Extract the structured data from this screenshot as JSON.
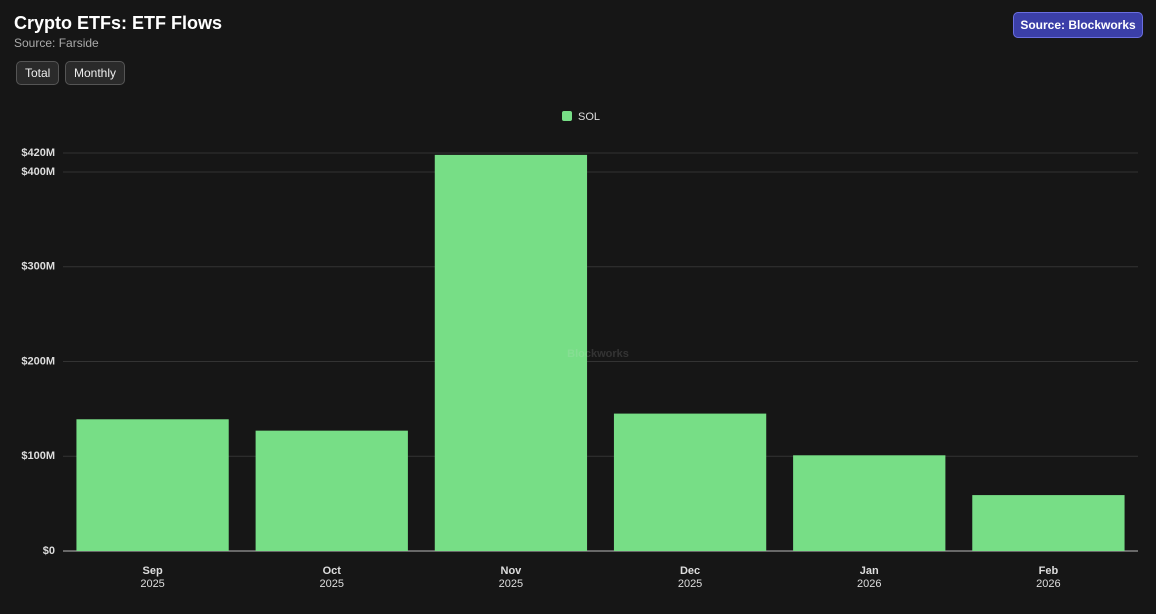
{
  "header": {
    "title": "Crypto ETFs: ETF Flows",
    "subtitle": "Source: Farside",
    "source_button": "Source: Blockworks"
  },
  "controls": [
    "Total",
    "Monthly"
  ],
  "chart_data": {
    "type": "bar",
    "watermark": "Blockworks",
    "categories": [
      {
        "month": "Sep",
        "year": "2025"
      },
      {
        "month": "Oct",
        "year": "2025"
      },
      {
        "month": "Nov",
        "year": "2025"
      },
      {
        "month": "Dec",
        "year": "2025"
      },
      {
        "month": "Jan",
        "year": "2026"
      },
      {
        "month": "Feb",
        "year": "2026"
      }
    ],
    "series": [
      {
        "name": "SOL",
        "color": "#77de86",
        "values": [
          139000000,
          127000000,
          418000000,
          145000000,
          101000000,
          59000000
        ]
      }
    ],
    "ylim": [
      0,
      420000000
    ],
    "yticks": [
      {
        "value": 0,
        "label": "$0"
      },
      {
        "value": 100000000,
        "label": "$100M"
      },
      {
        "value": 200000000,
        "label": "$200M"
      },
      {
        "value": 300000000,
        "label": "$300M"
      },
      {
        "value": 400000000,
        "label": "$400M"
      },
      {
        "value": 420000000,
        "label": "$420M"
      }
    ],
    "grid": true,
    "legend": "top"
  }
}
